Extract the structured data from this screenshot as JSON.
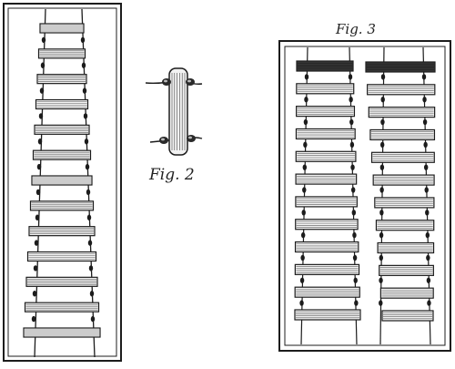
{
  "figures": {
    "fig2": {
      "label": "Fig. 2"
    },
    "fig3": {
      "label": "Fig. 3"
    }
  },
  "ink_color": "#1c1c1c",
  "paper_color": "#ffffff",
  "fig1_rung_count": 13,
  "fig3_rung_count_per_column": 12
}
